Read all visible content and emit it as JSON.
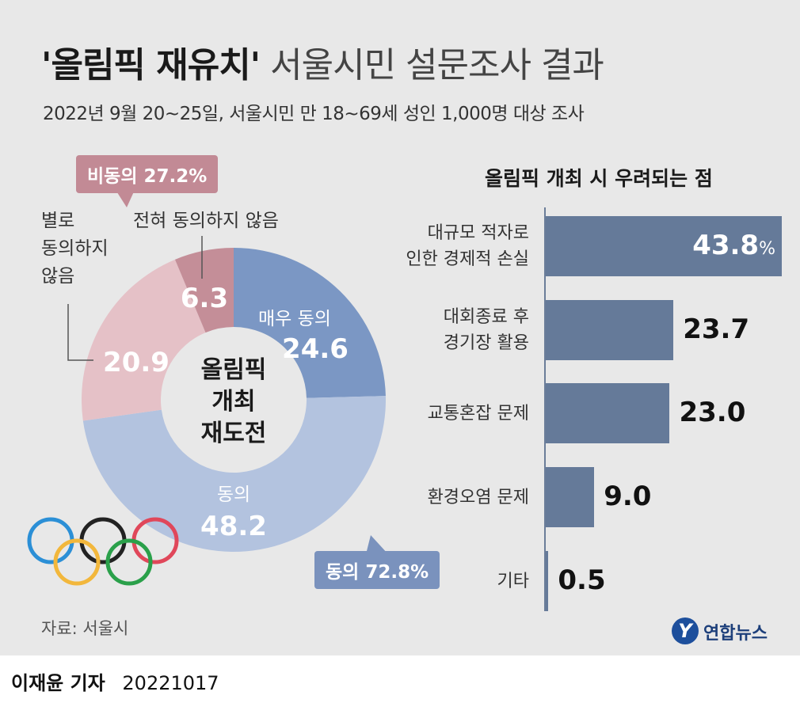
{
  "title": {
    "bold": "'올림픽 재유치'",
    "light": "서울시민 설문조사 결과"
  },
  "subtitle": "2022년 9월 20~25일, 서울시민 만 18~69세 성인 1,000명 대상 조사",
  "donut": {
    "center_line1": "올림픽",
    "center_line2": "개최",
    "center_line3": "재도전",
    "callout_disagree": "비동의 27.2%",
    "callout_agree": "동의 72.8%",
    "label_strong_disagree": "전혀 동의하지 않음",
    "label_disagree_line1": "별로",
    "label_disagree_line2": "동의하지",
    "label_disagree_line3": "않음",
    "colors": {
      "strongly_agree": "#7b97c4",
      "agree": "#b3c3df",
      "disagree": "#e5c1c7",
      "strongly_disagree": "#c48e98"
    }
  },
  "bar_chart": {
    "title": "올림픽 개최 시 우려되는 점",
    "bar_color": "#657a99",
    "unit": "%"
  },
  "source": "자료: 서울시",
  "logo_text": "연합뉴스",
  "logo_mark": "Y",
  "reporter": "이재윤 기자",
  "date": "20221017",
  "olympic_ring_colors": [
    "#2b8fd6",
    "#222222",
    "#e0475a",
    "#f2b73c",
    "#2aa04a"
  ],
  "chart_data": [
    {
      "type": "pie",
      "categories": [
        "매우 동의",
        "동의",
        "별로 동의하지 않음",
        "전혀 동의하지 않음"
      ],
      "values": [
        24.6,
        48.2,
        20.9,
        6.3
      ],
      "value_labels": [
        "24.6",
        "48.2",
        "20.9",
        "6.3"
      ],
      "slice_labels": [
        "매우 동의",
        "동의",
        "",
        ""
      ],
      "donut": true
    },
    {
      "type": "bar",
      "orientation": "horizontal",
      "title": "올림픽 개최 시 우려되는 점",
      "categories": [
        [
          "대규모 적자로",
          "인한 경제적 손실"
        ],
        [
          "대회종료 후",
          "경기장 활용"
        ],
        [
          "교통혼잡 문제"
        ],
        [
          "환경오염 문제"
        ],
        [
          "기타"
        ]
      ],
      "values": [
        43.8,
        23.7,
        23.0,
        9.0,
        0.5
      ],
      "value_labels": [
        "43.8",
        "23.7",
        "23.0",
        "9.0",
        "0.5"
      ],
      "xlim": [
        0,
        43.8
      ]
    }
  ]
}
